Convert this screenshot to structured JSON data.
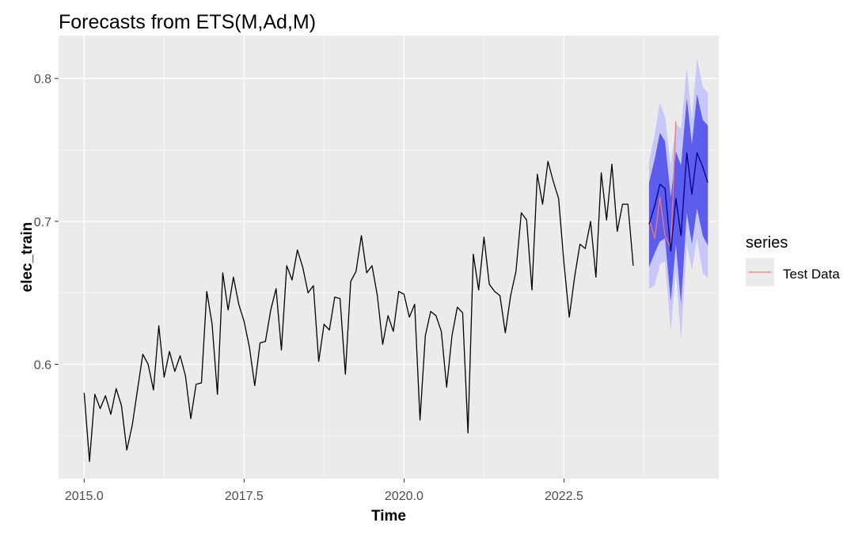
{
  "chart_data": {
    "type": "line",
    "title": "Forecasts from ETS(M,Ad,M)",
    "xlabel": "Time",
    "ylabel": "elec_train",
    "xlim": [
      2014.6,
      2024.92
    ],
    "ylim": [
      0.52,
      0.83
    ],
    "x_ticks": [
      2015.0,
      2017.5,
      2020.0,
      2022.5
    ],
    "x_tick_labels": [
      "2015.0",
      "2017.5",
      "2020.0",
      "2022.5"
    ],
    "y_ticks": [
      0.6,
      0.7,
      0.8
    ],
    "y_tick_labels": [
      "0.6",
      "0.7",
      "0.8"
    ],
    "grid": true,
    "legend": {
      "title": "series",
      "position": "right",
      "entries": [
        {
          "label": "Test Data",
          "color": "#F8766D"
        }
      ]
    },
    "series": [
      {
        "role": "history",
        "color": "#000000",
        "x_start": 2015.0,
        "x_step": 0.08333,
        "values": [
          0.58,
          0.532,
          0.579,
          0.569,
          0.578,
          0.565,
          0.583,
          0.571,
          0.54,
          0.557,
          0.582,
          0.607,
          0.6,
          0.582,
          0.627,
          0.591,
          0.609,
          0.595,
          0.606,
          0.592,
          0.562,
          0.586,
          0.587,
          0.651,
          0.628,
          0.579,
          0.664,
          0.638,
          0.661,
          0.642,
          0.63,
          0.612,
          0.585,
          0.615,
          0.616,
          0.638,
          0.653,
          0.61,
          0.669,
          0.659,
          0.68,
          0.668,
          0.65,
          0.655,
          0.602,
          0.628,
          0.624,
          0.647,
          0.646,
          0.593,
          0.658,
          0.665,
          0.69,
          0.664,
          0.669,
          0.648,
          0.614,
          0.634,
          0.623,
          0.651,
          0.649,
          0.633,
          0.642,
          0.561,
          0.62,
          0.637,
          0.634,
          0.623,
          0.584,
          0.62,
          0.64,
          0.636,
          0.552,
          0.677,
          0.652,
          0.689,
          0.656,
          0.651,
          0.648,
          0.622,
          0.648,
          0.665,
          0.706,
          0.701,
          0.652,
          0.733,
          0.712,
          0.742,
          0.728,
          0.716,
          0.671,
          0.633,
          0.661,
          0.684,
          0.681,
          0.7,
          0.661,
          0.734,
          0.701,
          0.74,
          0.693,
          0.712,
          0.712,
          0.669
        ]
      },
      {
        "name": "Test Data",
        "role": "test",
        "color": "#F8766D",
        "x": [
          2023.83,
          2023.92,
          2024.0,
          2024.08,
          2024.17,
          2024.25
        ],
        "values": [
          0.702,
          0.688,
          0.717,
          0.69,
          0.681,
          0.77
        ]
      },
      {
        "role": "forecast",
        "color": "#00008B",
        "x": [
          2023.83,
          2023.92,
          2024.0,
          2024.08,
          2024.17,
          2024.25,
          2024.33,
          2024.42,
          2024.5,
          2024.58,
          2024.67,
          2024.75
        ],
        "values": [
          0.698,
          0.711,
          0.726,
          0.723,
          0.679,
          0.716,
          0.69,
          0.748,
          0.719,
          0.748,
          0.738,
          0.727
        ]
      }
    ],
    "intervals": [
      {
        "level": "80",
        "color": "#5C5CED",
        "x": [
          2023.83,
          2023.92,
          2024.0,
          2024.08,
          2024.17,
          2024.25,
          2024.33,
          2024.42,
          2024.5,
          2024.58,
          2024.67,
          2024.75
        ],
        "lower": [
          0.668,
          0.678,
          0.686,
          0.688,
          0.644,
          0.684,
          0.642,
          0.706,
          0.684,
          0.709,
          0.69,
          0.683
        ],
        "upper": [
          0.727,
          0.744,
          0.762,
          0.756,
          0.717,
          0.749,
          0.739,
          0.786,
          0.754,
          0.789,
          0.771,
          0.767
        ]
      },
      {
        "level": "95",
        "color": "#C8C8F8",
        "x": [
          2023.83,
          2023.92,
          2024.0,
          2024.08,
          2024.17,
          2024.25,
          2024.33,
          2024.42,
          2024.5,
          2024.58,
          2024.67,
          2024.75
        ],
        "lower": [
          0.653,
          0.655,
          0.67,
          0.672,
          0.623,
          0.665,
          0.617,
          0.684,
          0.666,
          0.688,
          0.664,
          0.66
        ],
        "upper": [
          0.742,
          0.761,
          0.783,
          0.773,
          0.739,
          0.768,
          0.765,
          0.808,
          0.772,
          0.814,
          0.794,
          0.79
        ]
      }
    ]
  }
}
